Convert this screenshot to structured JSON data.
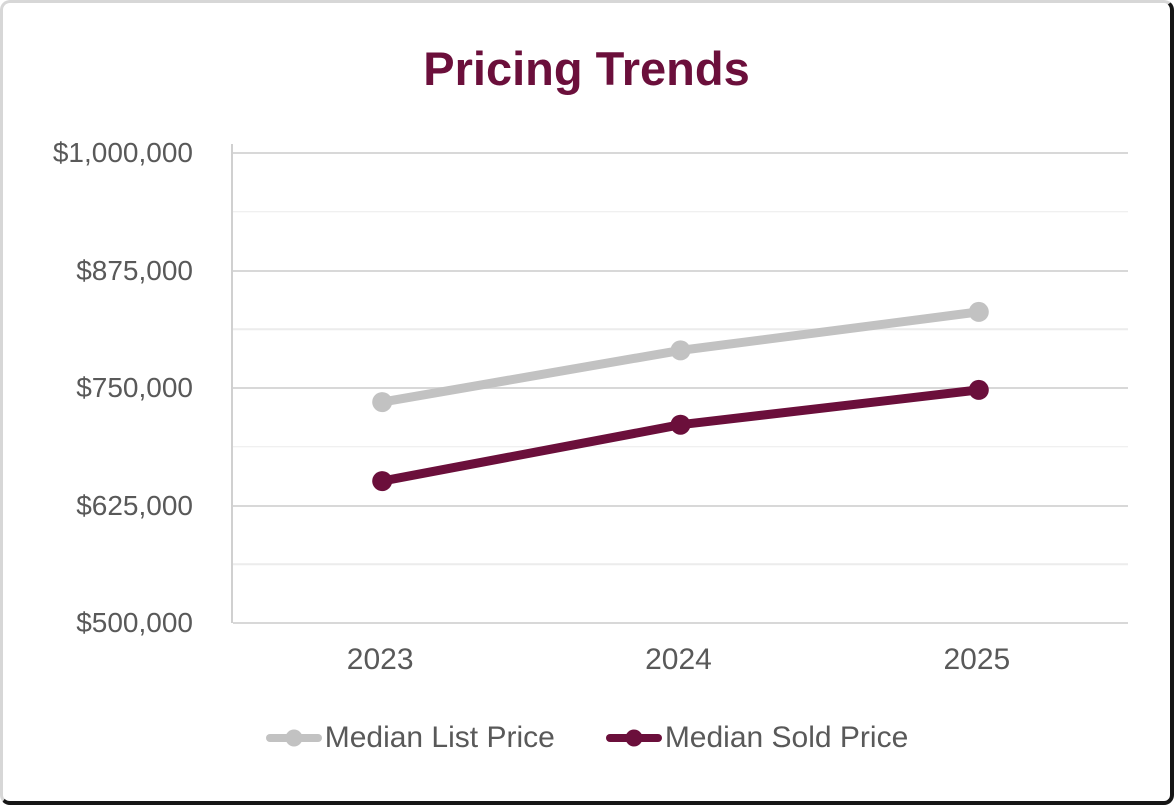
{
  "chart_data": {
    "type": "line",
    "title": "Pricing Trends",
    "title_color": "#6B0F3B",
    "axis_text_color": "#595959",
    "grid_major_color": "#D8D8D8",
    "grid_minor_color": "#ECECEC",
    "axis_line_color": "#D0D0D0",
    "background_color": "#FFFFFF",
    "categories": [
      "2023",
      "2024",
      "2025"
    ],
    "series": [
      {
        "name": "Median List Price",
        "color": "#C2C2C2",
        "values": [
          735000,
          790000,
          831000
        ]
      },
      {
        "name": "Median Sold Price",
        "color": "#6B0F3B",
        "values": [
          651000,
          711000,
          748000
        ]
      }
    ],
    "ylim": [
      500000,
      1000000
    ],
    "y_major_step": 125000,
    "y_minor_step": 62500,
    "y_ticks": [
      {
        "value": 1000000,
        "label": "$1,000,000"
      },
      {
        "value": 875000,
        "label": "$875,000"
      },
      {
        "value": 750000,
        "label": "$750,000"
      },
      {
        "value": 625000,
        "label": "$625,000"
      },
      {
        "value": 500000,
        "label": "$500,000"
      }
    ],
    "grid": true,
    "legend_position": "bottom"
  }
}
